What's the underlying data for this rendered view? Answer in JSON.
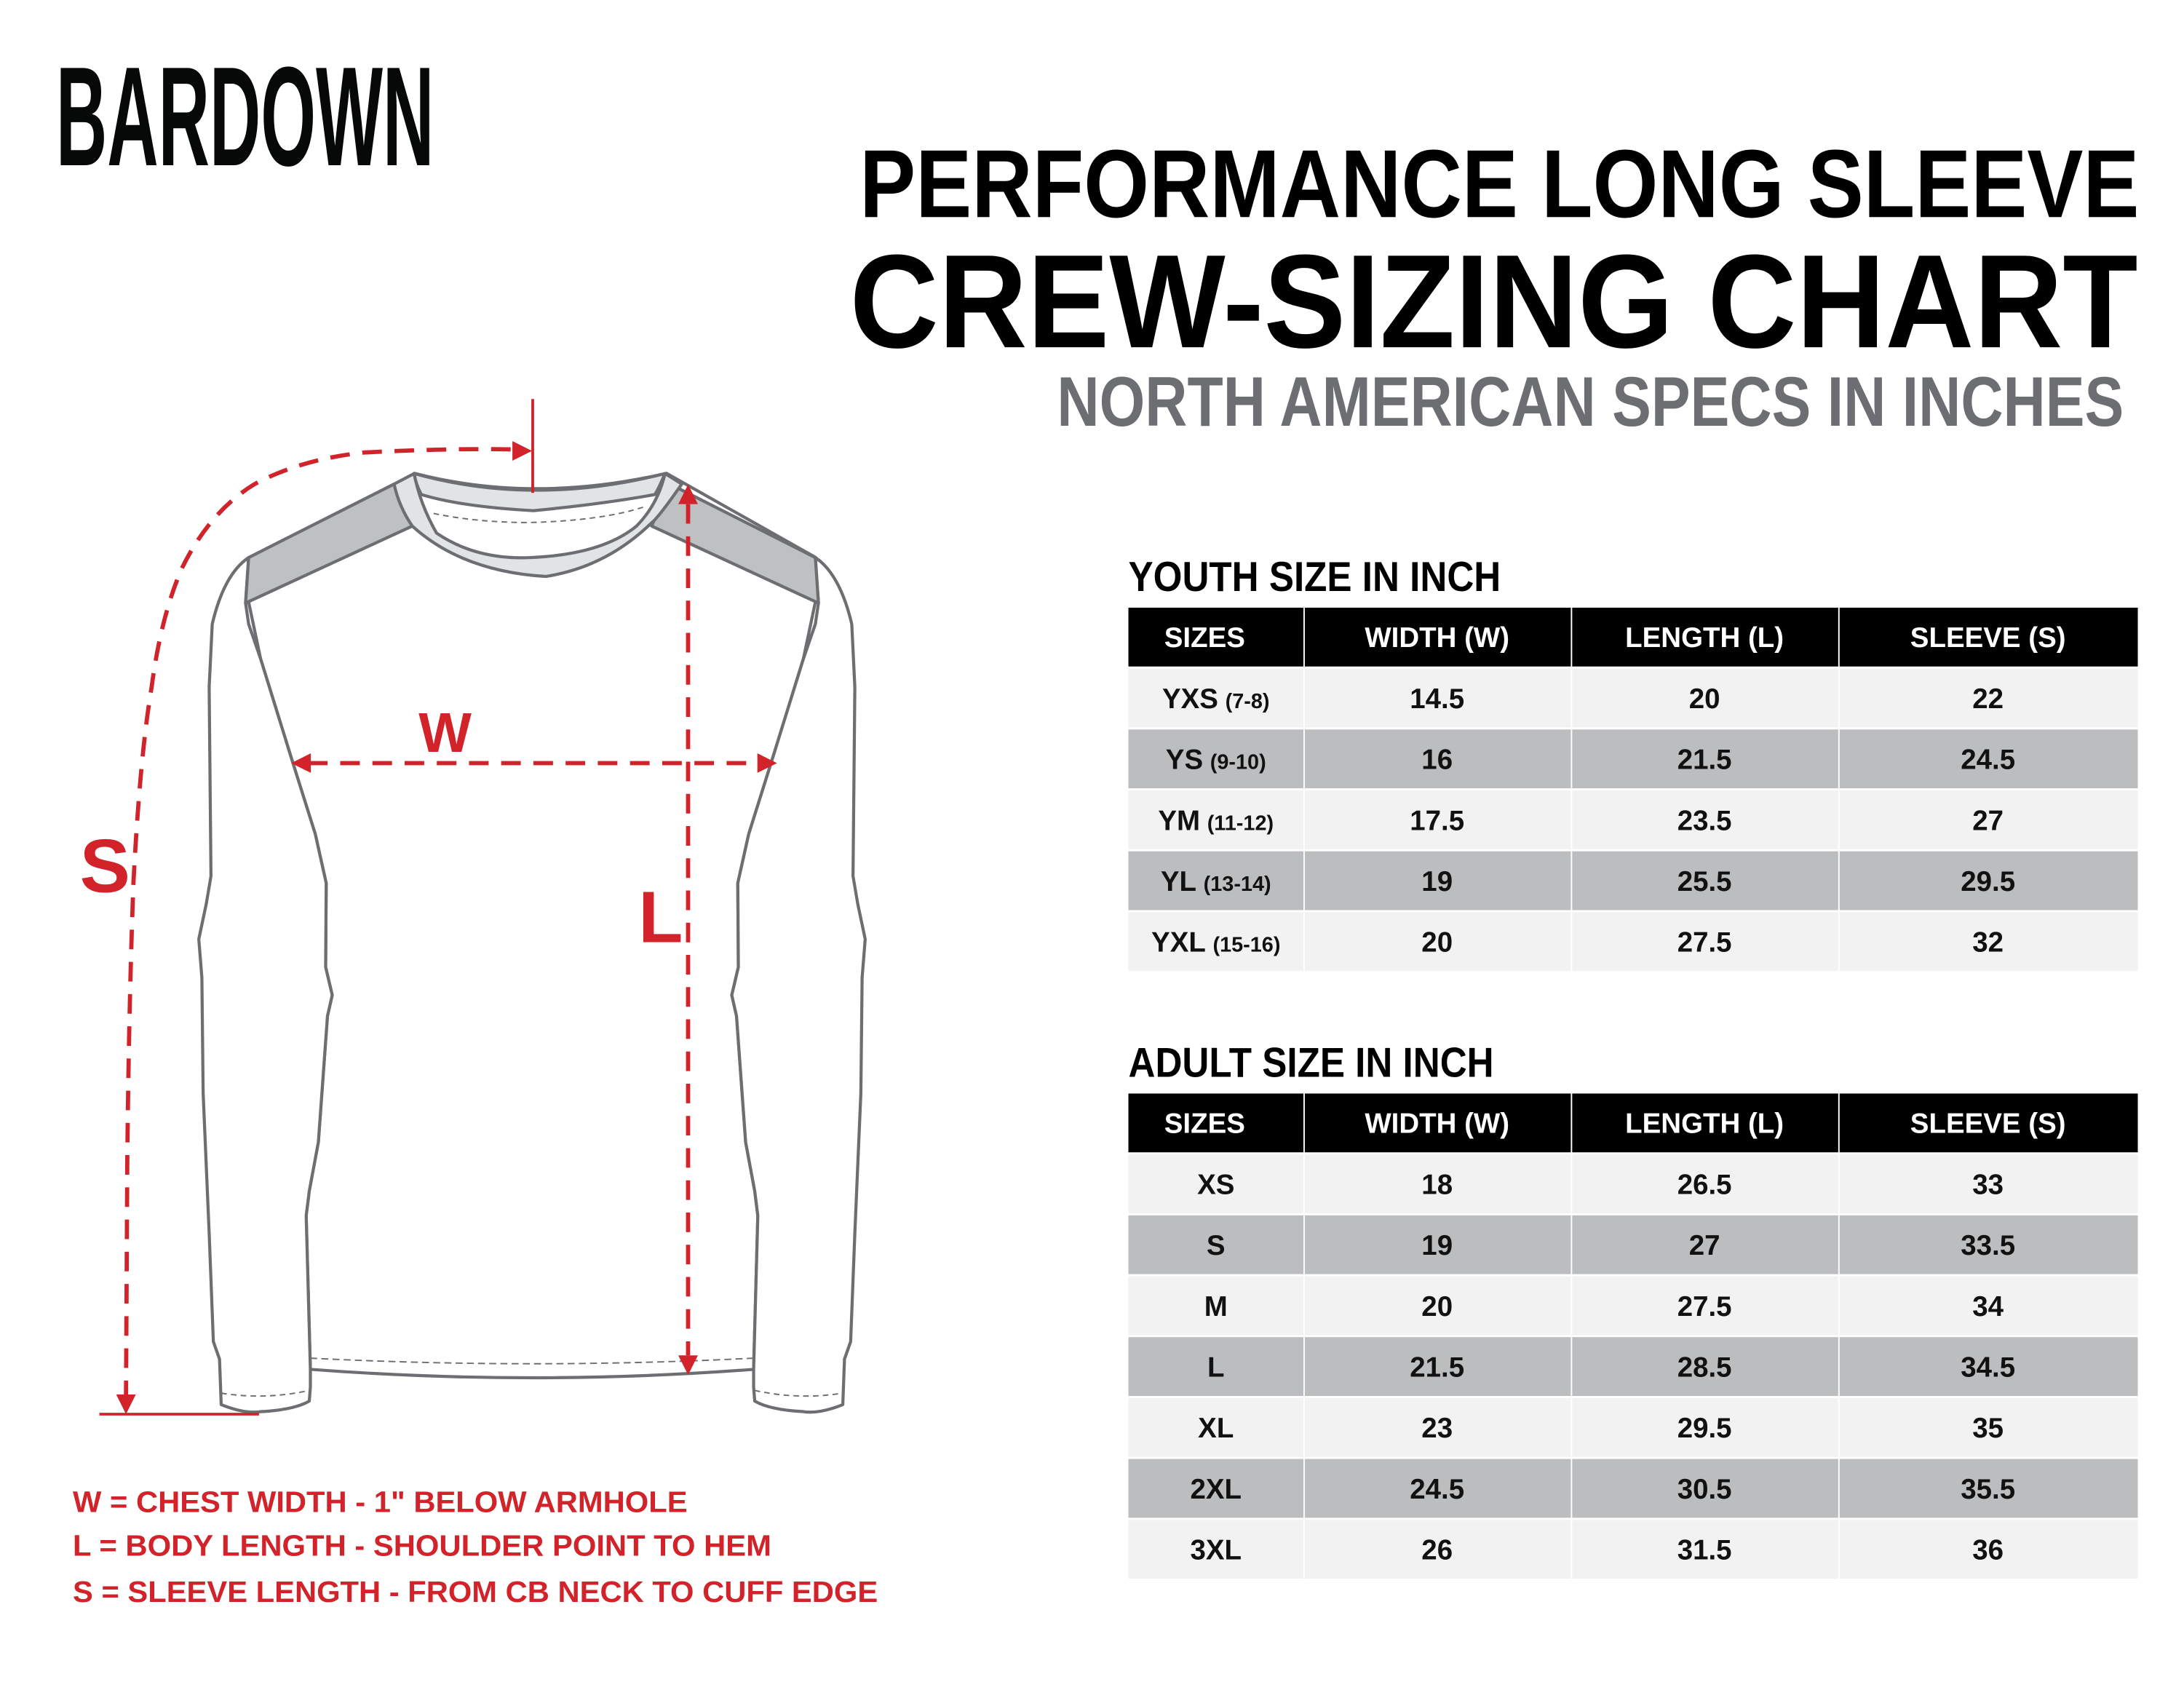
{
  "brand": {
    "logo": "BARDOWN"
  },
  "title": {
    "line1": "PERFORMANCE LONG SLEEVE",
    "line2": "CREW-SIZING CHART",
    "line3": "NORTH AMERICAN SPECS IN INCHES"
  },
  "diagram": {
    "labels": {
      "s": "S",
      "w": "W",
      "l": "L"
    }
  },
  "legend": [
    "W = CHEST WIDTH - 1\" BELOW ARMHOLE",
    "L = BODY LENGTH - SHOULDER POINT TO HEM",
    "S = SLEEVE LENGTH - FROM CB NECK TO CUFF EDGE"
  ],
  "colors": {
    "accent_red": "#d2232a",
    "header_black": "#000000",
    "row_light": "#f2f2f2",
    "row_dark": "#bcbdbf",
    "subtitle_gray": "#6d6e71",
    "outline_gray": "#6d6e71"
  },
  "youth": {
    "title": "YOUTH SIZE IN INCH",
    "headers": [
      "SIZES",
      "WIDTH (W)",
      "LENGTH (L)",
      "SLEEVE (S)"
    ],
    "rows": [
      {
        "size": "YXS",
        "range": "(7-8)",
        "width": "14.5",
        "length": "20",
        "sleeve": "22"
      },
      {
        "size": "YS",
        "range": "(9-10)",
        "width": "16",
        "length": "21.5",
        "sleeve": "24.5"
      },
      {
        "size": "YM",
        "range": "(11-12)",
        "width": "17.5",
        "length": "23.5",
        "sleeve": "27"
      },
      {
        "size": "YL",
        "range": "(13-14)",
        "width": "19",
        "length": "25.5",
        "sleeve": "29.5"
      },
      {
        "size": "YXL",
        "range": "(15-16)",
        "width": "20",
        "length": "27.5",
        "sleeve": "32"
      }
    ]
  },
  "adult": {
    "title": "ADULT SIZE IN INCH",
    "headers": [
      "SIZES",
      "WIDTH (W)",
      "LENGTH (L)",
      "SLEEVE (S)"
    ],
    "rows": [
      {
        "size": "XS",
        "width": "18",
        "length": "26.5",
        "sleeve": "33"
      },
      {
        "size": "S",
        "width": "19",
        "length": "27",
        "sleeve": "33.5"
      },
      {
        "size": "M",
        "width": "20",
        "length": "27.5",
        "sleeve": "34"
      },
      {
        "size": "L",
        "width": "21.5",
        "length": "28.5",
        "sleeve": "34.5"
      },
      {
        "size": "XL",
        "width": "23",
        "length": "29.5",
        "sleeve": "35"
      },
      {
        "size": "2XL",
        "width": "24.5",
        "length": "30.5",
        "sleeve": "35.5"
      },
      {
        "size": "3XL",
        "width": "26",
        "length": "31.5",
        "sleeve": "36"
      }
    ]
  }
}
